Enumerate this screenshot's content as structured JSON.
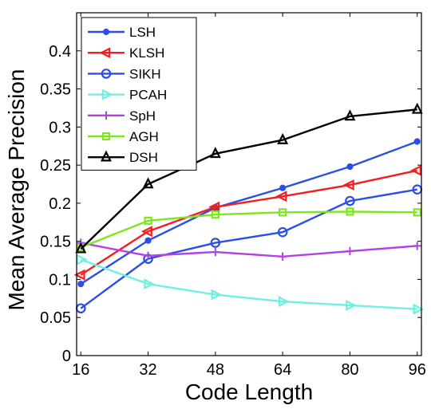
{
  "chart_data": {
    "type": "line",
    "title": "",
    "xlabel": "Code Length",
    "ylabel": "Mean Average Precision",
    "x": [
      16,
      32,
      48,
      64,
      80,
      96
    ],
    "xticks": [
      "16",
      "32",
      "48",
      "64",
      "80",
      "96"
    ],
    "yticks": [
      "0",
      "0.05",
      "0.1",
      "0.15",
      "0.2",
      "0.25",
      "0.3",
      "0.35",
      "0.4"
    ],
    "xlim": [
      15,
      97
    ],
    "ylim": [
      0,
      0.45
    ],
    "grid": false,
    "legend_position": "top-left",
    "series": [
      {
        "name": "LSH",
        "color": "#2b4ee6",
        "marker": "dot",
        "values": [
          0.094,
          0.151,
          0.194,
          0.22,
          0.248,
          0.281
        ]
      },
      {
        "name": "KLSH",
        "color": "#f41e1e",
        "marker": "triangle-left",
        "values": [
          0.106,
          0.163,
          0.195,
          0.209,
          0.224,
          0.243
        ]
      },
      {
        "name": "SIKH",
        "color": "#2b4ee6",
        "marker": "circle",
        "values": [
          0.062,
          0.127,
          0.148,
          0.162,
          0.203,
          0.218
        ]
      },
      {
        "name": "PCAH",
        "color": "#6ff0e0",
        "marker": "triangle-right",
        "values": [
          0.126,
          0.094,
          0.08,
          0.071,
          0.066,
          0.061
        ]
      },
      {
        "name": "SpH",
        "color": "#b43fe6",
        "marker": "plus",
        "values": [
          0.148,
          0.131,
          0.136,
          0.13,
          0.137,
          0.144
        ]
      },
      {
        "name": "AGH",
        "color": "#7ee61e",
        "marker": "square",
        "values": [
          0.142,
          0.177,
          0.185,
          0.188,
          0.189,
          0.188
        ]
      },
      {
        "name": "DSH",
        "color": "#000000",
        "marker": "triangle-up",
        "values": [
          0.14,
          0.225,
          0.265,
          0.283,
          0.314,
          0.323
        ]
      }
    ]
  }
}
